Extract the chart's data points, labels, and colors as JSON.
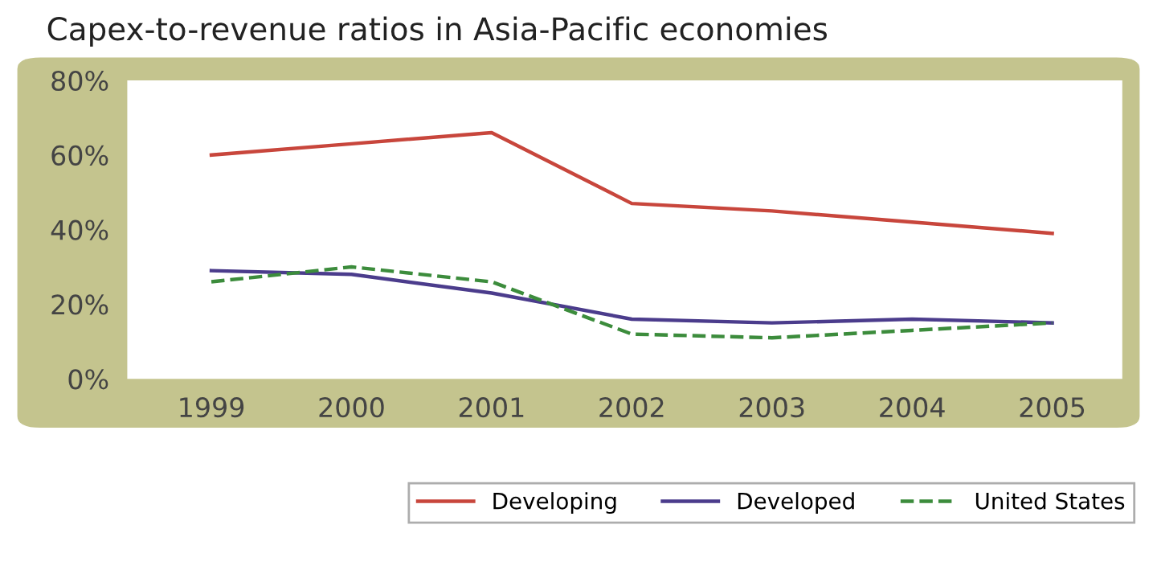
{
  "chart_data": {
    "type": "line",
    "title": "Capex-to-revenue ratios in Asia-Pacific economies",
    "categories": [
      "1999",
      "2000",
      "2001",
      "2002",
      "2003",
      "2004",
      "2005"
    ],
    "series": [
      {
        "name": "Developing",
        "color": "#c8463c",
        "values": [
          60,
          63,
          66,
          47,
          45,
          42,
          39
        ]
      },
      {
        "name": "Developed",
        "color": "#4b3c8c",
        "values": [
          29,
          28,
          23,
          16,
          15,
          16,
          15
        ]
      },
      {
        "name": "United States",
        "color": "#3c8c3c",
        "line_style": "dashed",
        "values": [
          26,
          30,
          26,
          12,
          11,
          13,
          15
        ]
      }
    ],
    "ylim": [
      0,
      80
    ],
    "yticks": [
      {
        "value": 0,
        "label": "0%"
      },
      {
        "value": 20,
        "label": "20%"
      },
      {
        "value": 40,
        "label": "40%"
      },
      {
        "value": 60,
        "label": "60%"
      },
      {
        "value": 80,
        "label": "80%"
      }
    ],
    "grid": false,
    "legend": "bottom right"
  }
}
